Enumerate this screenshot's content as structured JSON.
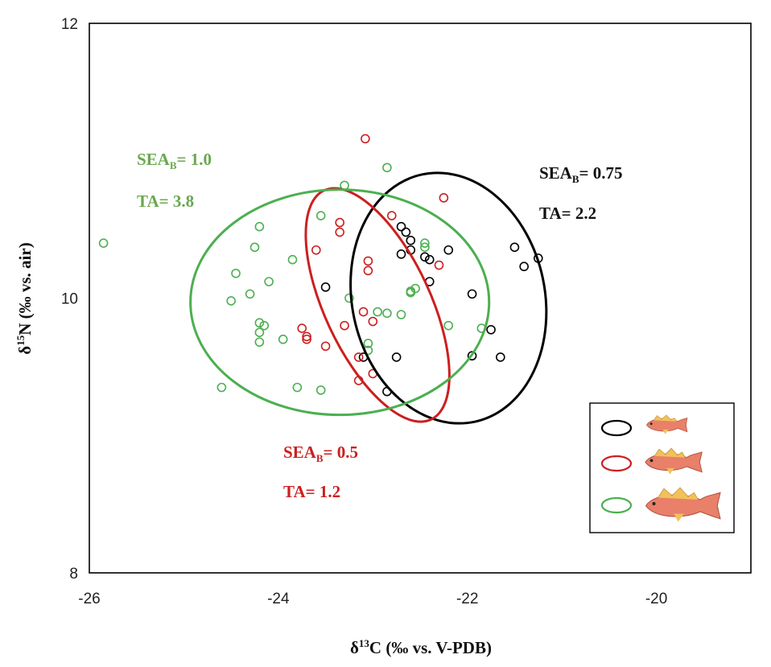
{
  "chart_data": {
    "type": "scatter",
    "title": "",
    "xlabel_main": "δ",
    "xlabel_sup": "13",
    "xlabel_rest": "C (‰ vs. V-PDB)",
    "ylabel_main": "δ",
    "ylabel_sup": "15",
    "ylabel_rest": "N (‰ vs. air)",
    "xlim": [
      -26,
      -19
    ],
    "ylim": [
      8,
      12
    ],
    "x_ticks": [
      -26,
      -24,
      -22,
      -20
    ],
    "y_ticks": [
      8,
      10,
      12
    ],
    "x_tick_labels": [
      "-26",
      "-24",
      "-22",
      "-20"
    ],
    "y_tick_labels": [
      "8",
      "10",
      "12"
    ],
    "legend_position": "bottom-right",
    "series": [
      {
        "name": "small fish",
        "color": "#000000",
        "points": [
          [
            -22.7,
            10.52
          ],
          [
            -22.65,
            10.48
          ],
          [
            -22.6,
            10.42
          ],
          [
            -22.6,
            10.35
          ],
          [
            -22.7,
            10.32
          ],
          [
            -22.45,
            10.3
          ],
          [
            -22.4,
            10.28
          ],
          [
            -22.2,
            10.35
          ],
          [
            -21.5,
            10.37
          ],
          [
            -21.25,
            10.29
          ],
          [
            -21.4,
            10.23
          ],
          [
            -22.4,
            10.12
          ],
          [
            -23.5,
            10.08
          ],
          [
            -21.95,
            10.03
          ],
          [
            -21.75,
            9.77
          ],
          [
            -23.1,
            9.57
          ],
          [
            -22.75,
            9.57
          ],
          [
            -21.95,
            9.58
          ],
          [
            -21.65,
            9.57
          ],
          [
            -22.85,
            9.32
          ]
        ],
        "ellipse": {
          "cx": -22.2,
          "cy": 10.0,
          "rx": 1.02,
          "ry": 0.92,
          "angle_deg": -12
        },
        "sea_label": "SEA",
        "sea_sub": "B",
        "sea_value": "= 0.75",
        "ta_label": "TA= 2.2"
      },
      {
        "name": "medium fish",
        "color": "#cc1f1f",
        "points": [
          [
            -23.08,
            11.16
          ],
          [
            -22.25,
            10.73
          ],
          [
            -22.8,
            10.6
          ],
          [
            -23.35,
            10.55
          ],
          [
            -23.35,
            10.48
          ],
          [
            -23.6,
            10.35
          ],
          [
            -23.05,
            10.27
          ],
          [
            -22.3,
            10.24
          ],
          [
            -23.05,
            10.2
          ],
          [
            -23.1,
            9.9
          ],
          [
            -23.0,
            9.83
          ],
          [
            -23.3,
            9.8
          ],
          [
            -23.75,
            9.78
          ],
          [
            -23.7,
            9.72
          ],
          [
            -23.7,
            9.7
          ],
          [
            -23.5,
            9.65
          ],
          [
            -23.15,
            9.57
          ],
          [
            -23.0,
            9.45
          ],
          [
            -23.15,
            9.4
          ]
        ],
        "ellipse": {
          "cx": -22.95,
          "cy": 9.95,
          "rx": 0.56,
          "ry": 0.92,
          "angle_deg": -25
        },
        "sea_label": "SEA",
        "sea_sub": "B",
        "sea_value": "= 0.5",
        "ta_label": "TA= 1.2"
      },
      {
        "name": "large fish",
        "color": "#4caf50",
        "points": [
          [
            -25.85,
            10.4
          ],
          [
            -22.85,
            10.95
          ],
          [
            -23.3,
            10.82
          ],
          [
            -23.55,
            10.6
          ],
          [
            -24.2,
            10.52
          ],
          [
            -24.25,
            10.37
          ],
          [
            -22.45,
            10.4
          ],
          [
            -22.45,
            10.37
          ],
          [
            -23.85,
            10.28
          ],
          [
            -24.45,
            10.18
          ],
          [
            -24.1,
            10.12
          ],
          [
            -24.3,
            10.03
          ],
          [
            -24.5,
            9.98
          ],
          [
            -23.25,
            10.0
          ],
          [
            -22.6,
            10.05
          ],
          [
            -22.55,
            10.07
          ],
          [
            -22.6,
            10.04
          ],
          [
            -22.95,
            9.9
          ],
          [
            -22.85,
            9.89
          ],
          [
            -22.7,
            9.88
          ],
          [
            -24.2,
            9.82
          ],
          [
            -24.15,
            9.8
          ],
          [
            -22.2,
            9.8
          ],
          [
            -21.85,
            9.78
          ],
          [
            -24.2,
            9.75
          ],
          [
            -24.2,
            9.68
          ],
          [
            -23.95,
            9.7
          ],
          [
            -23.05,
            9.67
          ],
          [
            -23.05,
            9.62
          ],
          [
            -24.6,
            9.35
          ],
          [
            -23.8,
            9.35
          ],
          [
            -23.55,
            9.33
          ]
        ],
        "ellipse": {
          "cx": -23.35,
          "cy": 9.97,
          "rx": 1.58,
          "ry": 0.82,
          "angle_deg": 0
        },
        "sea_label": "SEA",
        "sea_sub": "B",
        "sea_value": "= 1.0",
        "ta_label": "TA= 3.8"
      }
    ]
  }
}
